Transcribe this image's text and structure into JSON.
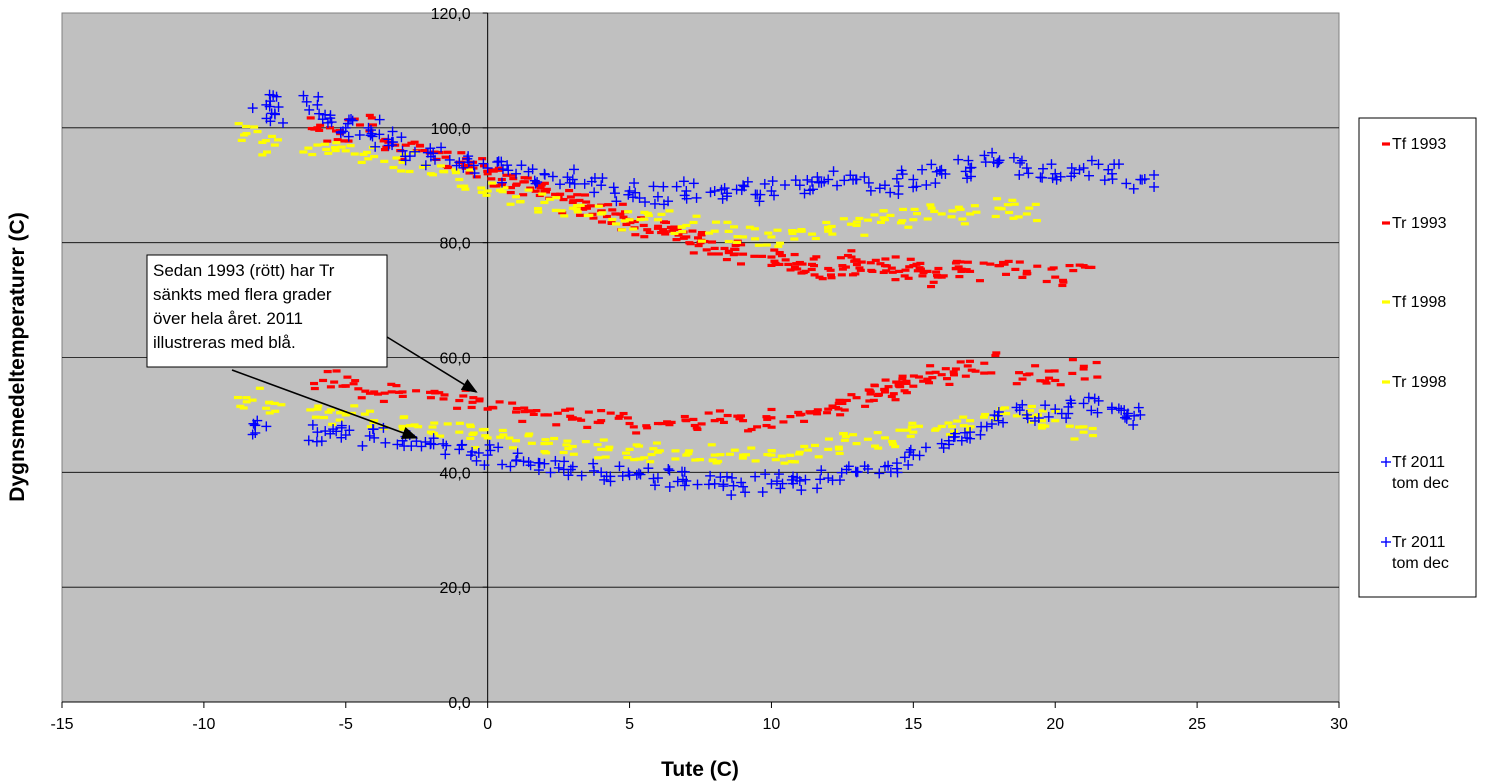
{
  "chart_data": {
    "type": "scatter",
    "xlabel": "Tute (C)",
    "ylabel": "Dygnsmedeltemperaturer (C)",
    "xlim": [
      -15,
      30
    ],
    "ylim": [
      0,
      120
    ],
    "x_ticks": [
      "-15",
      "-10",
      "-5",
      "0",
      "5",
      "10",
      "15",
      "20",
      "25",
      "30"
    ],
    "y_ticks": [
      "0,0",
      "20,0",
      "40,0",
      "60,0",
      "80,0",
      "100,0",
      "120,0"
    ],
    "grid": "horizontal",
    "plot_background": "#c0c0c0",
    "legend_position": "right",
    "annotation": {
      "lines": [
        "Sedan 1993 (rött) har Tr",
        "sänkts med flera grader",
        "över hela året. 2011",
        "illustreras med blå."
      ],
      "arrow_targets": [
        {
          "x": -0.4,
          "y": 54
        },
        {
          "x": -2.5,
          "y": 46
        }
      ]
    },
    "series": [
      {
        "name": "Tf 1993",
        "marker": "dash",
        "color": "#ff0000",
        "points": [
          [
            -6,
            100
          ],
          [
            -5.2,
            99
          ],
          [
            -4.5,
            100.5
          ],
          [
            -3.5,
            97.5
          ],
          [
            -2.5,
            96
          ],
          [
            -1.8,
            94.5
          ],
          [
            -1,
            94
          ],
          [
            -0.5,
            93
          ],
          [
            0,
            92
          ],
          [
            0.5,
            91
          ],
          [
            1,
            90
          ],
          [
            1.5,
            89.5
          ],
          [
            2,
            89
          ],
          [
            2.5,
            88
          ],
          [
            3,
            87
          ],
          [
            3.5,
            86
          ],
          [
            4,
            85.5
          ],
          [
            4.5,
            85
          ],
          [
            5,
            84
          ],
          [
            5.5,
            83
          ],
          [
            6,
            82.5
          ],
          [
            6.5,
            82
          ],
          [
            7,
            81
          ],
          [
            7.5,
            80
          ],
          [
            8,
            79
          ],
          [
            8.5,
            78.5
          ],
          [
            9,
            78
          ],
          [
            10,
            77.5
          ],
          [
            10.5,
            77
          ],
          [
            11,
            76.5
          ],
          [
            11.5,
            76
          ],
          [
            12,
            75.5
          ],
          [
            12.5,
            76
          ],
          [
            13,
            77
          ],
          [
            13.5,
            76.5
          ],
          [
            14,
            76
          ],
          [
            14.5,
            75
          ],
          [
            15,
            76
          ],
          [
            15.5,
            75
          ],
          [
            16,
            74
          ],
          [
            16.5,
            75.5
          ],
          [
            17,
            75
          ],
          [
            18,
            76
          ],
          [
            19,
            75
          ],
          [
            20,
            74
          ],
          [
            21,
            76
          ]
        ]
      },
      {
        "name": "Tr 1993",
        "marker": "dash",
        "color": "#ff0000",
        "points": [
          [
            -5.8,
            56
          ],
          [
            -5,
            55
          ],
          [
            -4,
            54
          ],
          [
            -3,
            54
          ],
          [
            -2,
            53
          ],
          [
            -1,
            52.5
          ],
          [
            0,
            51
          ],
          [
            1,
            50.5
          ],
          [
            2,
            50
          ],
          [
            3,
            49.5
          ],
          [
            4,
            49
          ],
          [
            5,
            48.5
          ],
          [
            6,
            48.5
          ],
          [
            7,
            49
          ],
          [
            8,
            49
          ],
          [
            9,
            49
          ],
          [
            10,
            49.5
          ],
          [
            11,
            50
          ],
          [
            12,
            51
          ],
          [
            12.5,
            52
          ],
          [
            13,
            53
          ],
          [
            13.5,
            54
          ],
          [
            14,
            54
          ],
          [
            14.5,
            55
          ],
          [
            15,
            55
          ],
          [
            15.5,
            56
          ],
          [
            16,
            57
          ],
          [
            16.5,
            58
          ],
          [
            17.5,
            59
          ],
          [
            19,
            57
          ],
          [
            20,
            56
          ],
          [
            21,
            58
          ]
        ]
      },
      {
        "name": "Tf 1998",
        "marker": "dash",
        "color": "#ffff00",
        "points": [
          [
            -8.5,
            99
          ],
          [
            -7.5,
            97
          ],
          [
            -6,
            97
          ],
          [
            -5,
            96
          ],
          [
            -4,
            95
          ],
          [
            -3,
            94
          ],
          [
            -2,
            92
          ],
          [
            -1,
            91
          ],
          [
            0,
            89
          ],
          [
            1,
            88
          ],
          [
            2,
            87
          ],
          [
            3,
            86
          ],
          [
            4,
            85
          ],
          [
            5,
            84
          ],
          [
            6,
            84
          ],
          [
            7,
            83
          ],
          [
            8,
            82
          ],
          [
            9,
            81
          ],
          [
            10,
            81
          ],
          [
            11,
            82
          ],
          [
            12,
            82
          ],
          [
            13,
            83
          ],
          [
            14,
            84
          ],
          [
            15,
            84
          ],
          [
            16,
            85
          ],
          [
            17,
            85
          ],
          [
            18,
            86
          ],
          [
            19,
            85
          ]
        ]
      },
      {
        "name": "Tr 1998",
        "marker": "dash",
        "color": "#ffff00",
        "points": [
          [
            -8.5,
            53
          ],
          [
            -7.5,
            52
          ],
          [
            -6,
            51
          ],
          [
            -5,
            50
          ],
          [
            -4,
            49
          ],
          [
            -3,
            48
          ],
          [
            -2,
            47
          ],
          [
            -1,
            47
          ],
          [
            0,
            46
          ],
          [
            1,
            45.5
          ],
          [
            2,
            45
          ],
          [
            3,
            44.5
          ],
          [
            4,
            44
          ],
          [
            5,
            44
          ],
          [
            6,
            43.5
          ],
          [
            7,
            43
          ],
          [
            8,
            43
          ],
          [
            9,
            43
          ],
          [
            10,
            43
          ],
          [
            11,
            43.5
          ],
          [
            12,
            44
          ],
          [
            13,
            45
          ],
          [
            14,
            46
          ],
          [
            15,
            47
          ],
          [
            16,
            48
          ],
          [
            17,
            49
          ],
          [
            18,
            50
          ],
          [
            19,
            50
          ],
          [
            20,
            49
          ],
          [
            21,
            47
          ]
        ]
      },
      {
        "name": "Tf 2011 tom dec",
        "marker": "plus",
        "color": "#0000ff",
        "points": [
          [
            -7.8,
            104
          ],
          [
            -7.5,
            102.5
          ],
          [
            -6,
            104
          ],
          [
            -5.5,
            101
          ],
          [
            -5,
            100
          ],
          [
            -4.2,
            100
          ],
          [
            -3.5,
            98
          ],
          [
            -3,
            96
          ],
          [
            -2,
            95
          ],
          [
            -1,
            94
          ],
          [
            0,
            93
          ],
          [
            1,
            92
          ],
          [
            2,
            92
          ],
          [
            3,
            91
          ],
          [
            4,
            90
          ],
          [
            5,
            89
          ],
          [
            6,
            88
          ],
          [
            7,
            89
          ],
          [
            8,
            89
          ],
          [
            9,
            90
          ],
          [
            10,
            89
          ],
          [
            11,
            90
          ],
          [
            12,
            91
          ],
          [
            13,
            91
          ],
          [
            14,
            90
          ],
          [
            15,
            91
          ],
          [
            16,
            92
          ],
          [
            17,
            93
          ],
          [
            18,
            94
          ],
          [
            19,
            93
          ],
          [
            20,
            92
          ],
          [
            21,
            93
          ],
          [
            22,
            92
          ],
          [
            23,
            91
          ]
        ]
      },
      {
        "name": "Tr 2011 tom dec",
        "marker": "plus",
        "color": "#0000ff",
        "points": [
          [
            -7.8,
            48
          ],
          [
            -6,
            47
          ],
          [
            -5,
            46.5
          ],
          [
            -4,
            46
          ],
          [
            -3,
            45.5
          ],
          [
            -2,
            45
          ],
          [
            -1,
            44
          ],
          [
            0,
            43
          ],
          [
            1,
            42
          ],
          [
            2,
            41.5
          ],
          [
            3,
            41
          ],
          [
            4,
            40
          ],
          [
            5,
            39.5
          ],
          [
            6,
            39
          ],
          [
            7,
            38.5
          ],
          [
            8,
            38
          ],
          [
            9,
            37.5
          ],
          [
            10,
            38
          ],
          [
            11,
            38.5
          ],
          [
            12,
            39
          ],
          [
            13,
            40
          ],
          [
            14,
            41
          ],
          [
            15,
            43
          ],
          [
            16,
            45
          ],
          [
            17,
            47
          ],
          [
            18,
            49
          ],
          [
            19,
            50
          ],
          [
            20,
            51
          ],
          [
            21,
            52
          ],
          [
            22,
            51
          ],
          [
            23,
            50
          ]
        ]
      }
    ]
  }
}
